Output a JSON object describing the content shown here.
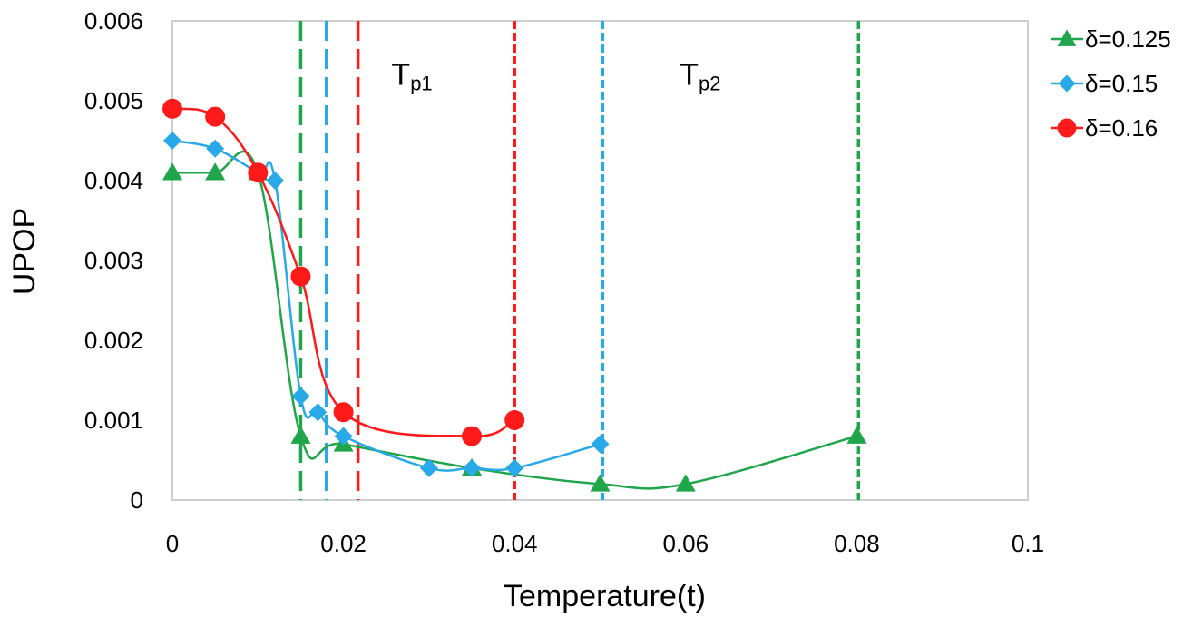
{
  "chart_data": {
    "type": "line",
    "xlabel": "Temperature(t)",
    "ylabel": "UPOP",
    "xlim": [
      0,
      0.1
    ],
    "ylim": [
      0,
      0.006
    ],
    "xticks": [
      "0",
      "0.02",
      "0.04",
      "0.06",
      "0.08",
      "0.1"
    ],
    "xtick_values": [
      0,
      0.02,
      0.04,
      0.06,
      0.08,
      0.1
    ],
    "yticks": [
      "0",
      "0.001",
      "0.002",
      "0.003",
      "0.004",
      "0.005",
      "0.006"
    ],
    "ytick_values": [
      0,
      0.001,
      0.002,
      0.003,
      0.004,
      0.005,
      0.006
    ],
    "grid": false,
    "legend_position": "right",
    "series": [
      {
        "name": "δ=0.125",
        "marker": "triangle",
        "color": "#1fa64a",
        "x": [
          0,
          0.005,
          0.01,
          0.015,
          0.02,
          0.035,
          0.05,
          0.06,
          0.08
        ],
        "y": [
          0.0041,
          0.0041,
          0.0041,
          0.0008,
          0.0007,
          0.0004,
          0.0002,
          0.0002,
          0.0008
        ]
      },
      {
        "name": "δ=0.15",
        "marker": "diamond",
        "color": "#2aa9e8",
        "x": [
          0,
          0.005,
          0.01,
          0.012,
          0.015,
          0.017,
          0.02,
          0.03,
          0.035,
          0.04,
          0.05
        ],
        "y": [
          0.0045,
          0.0044,
          0.0041,
          0.004,
          0.0013,
          0.0011,
          0.0008,
          0.0004,
          0.0004,
          0.0004,
          0.0007
        ]
      },
      {
        "name": "δ=0.16",
        "marker": "circle",
        "color": "#ff1a1a",
        "x": [
          0,
          0.005,
          0.01,
          0.015,
          0.02,
          0.035,
          0.04
        ],
        "y": [
          0.0049,
          0.0048,
          0.0041,
          0.0028,
          0.0011,
          0.0008,
          0.001
        ]
      }
    ],
    "vlines": [
      {
        "x": 0.015,
        "color": "#1fa64a",
        "style": "long-dash"
      },
      {
        "x": 0.018,
        "color": "#2aa9e8",
        "style": "long-dash"
      },
      {
        "x": 0.0217,
        "color": "#ff1a1a",
        "style": "long-dash"
      },
      {
        "x": 0.04,
        "color": "#ff1a1a",
        "style": "short-dash"
      },
      {
        "x": 0.0503,
        "color": "#2aa9e8",
        "style": "short-dash"
      },
      {
        "x": 0.0802,
        "color": "#1fa64a",
        "style": "short-dash"
      }
    ],
    "annotations": [
      {
        "main": "T",
        "sub": "p1",
        "x": 0.0256,
        "y": 0.0052
      },
      {
        "main": "T",
        "sub": "p2",
        "x": 0.0593,
        "y": 0.0052
      }
    ]
  }
}
